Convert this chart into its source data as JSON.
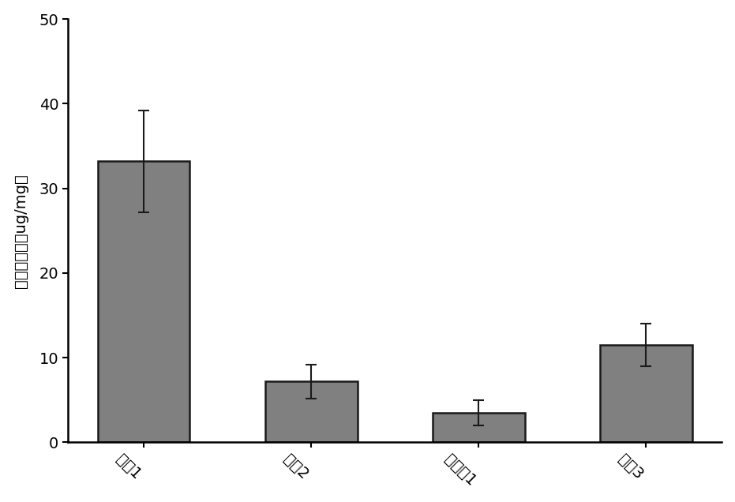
{
  "categories": [
    "对比1",
    "对比2",
    "实施兡1",
    "对比3"
  ],
  "values": [
    33.2,
    7.2,
    3.5,
    11.5
  ],
  "errors": [
    6.0,
    2.0,
    1.5,
    2.5
  ],
  "bar_color": "#808080",
  "bar_edgecolor": "#1a1a1a",
  "ylabel": "馒论子含量（ug/mg）",
  "ylim": [
    0,
    50
  ],
  "yticks": [
    0,
    10,
    20,
    30,
    40,
    50
  ],
  "background_color": "#ffffff",
  "bar_width": 0.55,
  "tick_labelsize": 14,
  "ylabel_fontsize": 14,
  "xtick_rotation": -45
}
